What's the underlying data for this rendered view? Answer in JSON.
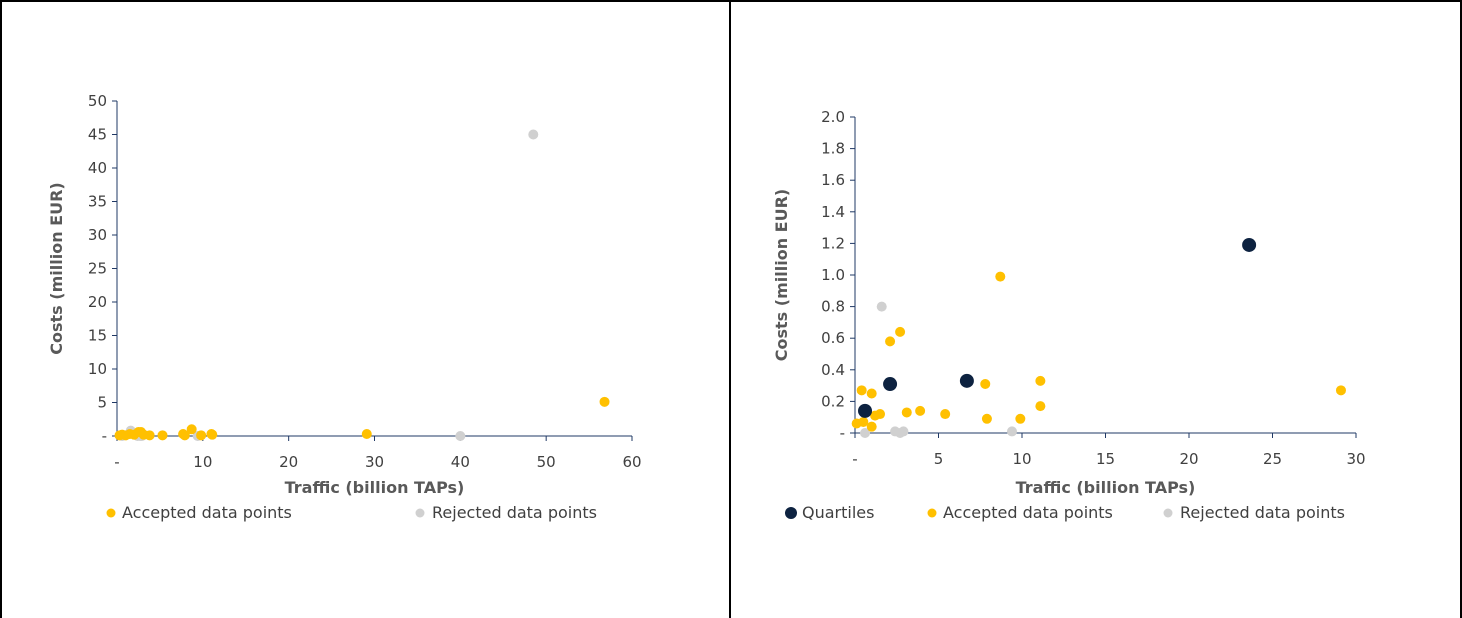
{
  "colors": {
    "accepted": "#FFC000",
    "rejected": "#D0D0D0",
    "quartiles": "#0D2240",
    "axis": "#1F3864",
    "text": "#404040"
  },
  "chart_data": [
    {
      "type": "scatter",
      "xlabel": "Traffic (billion TAPs)",
      "ylabel": "Costs (million EUR)",
      "xlim": [
        0,
        60
      ],
      "ylim": [
        0,
        50
      ],
      "x_ticks": [
        "-",
        "10",
        "20",
        "30",
        "40",
        "50",
        "60"
      ],
      "y_ticks": [
        "-",
        "5",
        "10",
        "15",
        "20",
        "25",
        "30",
        "35",
        "40",
        "45",
        "50"
      ],
      "grid": false,
      "legend_position": "bottom",
      "series": [
        {
          "name": "Accepted data points",
          "color": "#FFC000",
          "points": [
            [
              0.3,
              0.1
            ],
            [
              0.6,
              0.2
            ],
            [
              1.0,
              0.1
            ],
            [
              1.5,
              0.3
            ],
            [
              2.0,
              0.2
            ],
            [
              2.5,
              0.6
            ],
            [
              2.8,
              0.6
            ],
            [
              3.1,
              0.2
            ],
            [
              3.8,
              0.1
            ],
            [
              5.3,
              0.1
            ],
            [
              7.7,
              0.3
            ],
            [
              7.9,
              0.1
            ],
            [
              8.7,
              1.0
            ],
            [
              9.8,
              0.1
            ],
            [
              11.0,
              0.3
            ],
            [
              11.1,
              0.2
            ],
            [
              29.1,
              0.3
            ],
            [
              56.8,
              5.1
            ]
          ]
        },
        {
          "name": "Rejected data points",
          "color": "#D0D0D0",
          "points": [
            [
              0.6,
              0.0
            ],
            [
              1.6,
              0.8
            ],
            [
              2.4,
              0.0
            ],
            [
              2.7,
              0.0
            ],
            [
              2.9,
              0.0
            ],
            [
              9.4,
              0.0
            ],
            [
              40.0,
              0.0
            ],
            [
              48.5,
              45.0
            ]
          ]
        }
      ]
    },
    {
      "type": "scatter",
      "xlabel": "Traffic (billion TAPs)",
      "ylabel": "Costs (million EUR)",
      "xlim": [
        0,
        30
      ],
      "ylim": [
        0,
        2.0
      ],
      "x_ticks": [
        "-",
        "5",
        "10",
        "15",
        "20",
        "25",
        "30"
      ],
      "y_ticks": [
        "-",
        "0.2",
        "0.4",
        "0.6",
        "0.8",
        "1.0",
        "1.2",
        "1.4",
        "1.6",
        "1.8",
        "2.0"
      ],
      "grid": false,
      "legend_position": "bottom",
      "series": [
        {
          "name": "Quartiles",
          "color": "#0D2240",
          "points": [
            [
              0.6,
              0.14
            ],
            [
              2.1,
              0.31
            ],
            [
              6.7,
              0.33
            ],
            [
              23.6,
              1.19
            ]
          ]
        },
        {
          "name": "Accepted data points",
          "color": "#FFC000",
          "points": [
            [
              0.1,
              0.06
            ],
            [
              0.4,
              0.27
            ],
            [
              0.5,
              0.07
            ],
            [
              1.0,
              0.25
            ],
            [
              1.0,
              0.04
            ],
            [
              1.2,
              0.11
            ],
            [
              1.5,
              0.12
            ],
            [
              2.1,
              0.58
            ],
            [
              2.7,
              0.64
            ],
            [
              3.1,
              0.13
            ],
            [
              3.9,
              0.14
            ],
            [
              5.4,
              0.12
            ],
            [
              7.8,
              0.31
            ],
            [
              7.9,
              0.09
            ],
            [
              8.7,
              0.99
            ],
            [
              9.9,
              0.09
            ],
            [
              11.1,
              0.33
            ],
            [
              11.1,
              0.17
            ],
            [
              29.1,
              0.27
            ]
          ]
        },
        {
          "name": "Rejected data points",
          "color": "#D0D0D0",
          "points": [
            [
              0.6,
              0.0
            ],
            [
              1.6,
              0.8
            ],
            [
              2.4,
              0.01
            ],
            [
              2.7,
              0.0
            ],
            [
              2.9,
              0.01
            ],
            [
              9.4,
              0.01
            ]
          ]
        }
      ]
    }
  ]
}
